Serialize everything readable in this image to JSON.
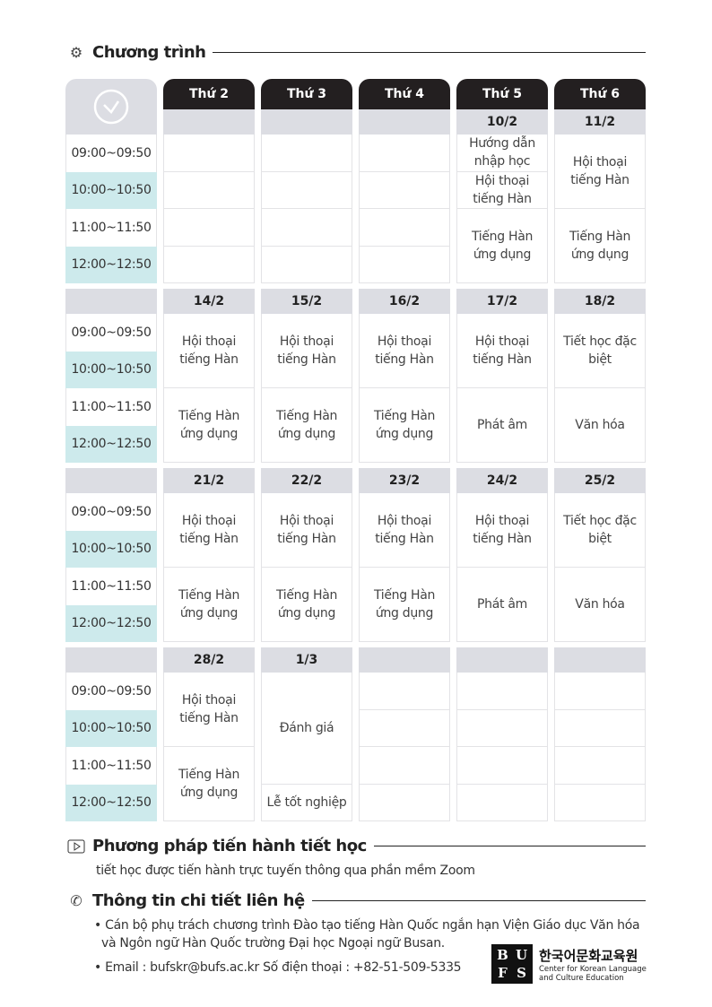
{
  "sections": {
    "program": {
      "title": "Chương trình",
      "icon": "gears-icon"
    },
    "method": {
      "title": "Phương pháp tiến hành tiết học",
      "icon": "play-icon",
      "text": "tiết học được tiến hành trực tuyến thông qua phần mềm Zoom"
    },
    "contact": {
      "title": "Thông tin chi tiết liên hệ",
      "icon": "phone-icon",
      "line1": "• Cán bộ phụ trách chương trình Đào tạo tiếng Hàn Quốc ngắn hạn Viện Giáo dục Văn hóa",
      "line2": "và Ngôn ngữ Hàn Quốc trường Đại học Ngoại ngữ Busan.",
      "line3": "• Email : bufskr@bufs.ac.kr  Số điện thoại : +82-51-509-5335"
    }
  },
  "logo": {
    "mark": [
      "B",
      "U",
      "F",
      "S"
    ],
    "korean": "한국어문화교육원",
    "english1": "Center for Korean Language",
    "english2": "and Culture Education"
  },
  "colors": {
    "header": "#231f20",
    "date_row": "#dcdde3",
    "time_alt": "#cdeaec"
  },
  "schedule": {
    "days": [
      "Thứ 2",
      "Thứ 3",
      "Thứ 4",
      "Thứ 5",
      "Thứ 6"
    ],
    "times": [
      "09:00~09:50",
      "10:00~10:50",
      "11:00~11:50",
      "12:00~12:50"
    ],
    "weeks": [
      {
        "dates": [
          "",
          "",
          "",
          "10/2",
          "11/2"
        ],
        "cells": [
          [
            [
              "",
              1
            ],
            [
              "",
              1
            ],
            [
              "",
              1
            ],
            [
              "",
              1
            ]
          ],
          [
            [
              "",
              1
            ],
            [
              "",
              1
            ],
            [
              "",
              1
            ],
            [
              "",
              1
            ]
          ],
          [
            [
              "",
              1
            ],
            [
              "",
              1
            ],
            [
              "",
              1
            ],
            [
              "",
              1
            ]
          ],
          [
            [
              "Hướng dẫn nhập học",
              1
            ],
            [
              "Hội thoại tiếng Hàn",
              1
            ],
            [
              "Tiếng Hàn ứng dụng",
              2
            ]
          ],
          [
            [
              "Hội thoại tiếng Hàn",
              2
            ],
            [
              "Tiếng Hàn ứng dụng",
              2
            ]
          ]
        ]
      },
      {
        "dates": [
          "14/2",
          "15/2",
          "16/2",
          "17/2",
          "18/2"
        ],
        "cells": [
          [
            [
              "Hội thoại tiếng Hàn",
              2
            ],
            [
              "Tiếng Hàn ứng dụng",
              2
            ]
          ],
          [
            [
              "Hội thoại tiếng Hàn",
              2
            ],
            [
              "Tiếng Hàn ứng dụng",
              2
            ]
          ],
          [
            [
              "Hội thoại tiếng Hàn",
              2
            ],
            [
              "Tiếng Hàn ứng dụng",
              2
            ]
          ],
          [
            [
              "Hội thoại tiếng Hàn",
              2
            ],
            [
              "Phát âm",
              2
            ]
          ],
          [
            [
              "Tiết học đặc biệt",
              2
            ],
            [
              "Văn hóa",
              2
            ]
          ]
        ]
      },
      {
        "dates": [
          "21/2",
          "22/2",
          "23/2",
          "24/2",
          "25/2"
        ],
        "cells": [
          [
            [
              "Hội thoại tiếng Hàn",
              2
            ],
            [
              "Tiếng Hàn ứng dụng",
              2
            ]
          ],
          [
            [
              "Hội thoại tiếng Hàn",
              2
            ],
            [
              "Tiếng Hàn ứng dụng",
              2
            ]
          ],
          [
            [
              "Hội thoại tiếng Hàn",
              2
            ],
            [
              "Tiếng Hàn ứng dụng",
              2
            ]
          ],
          [
            [
              "Hội thoại tiếng Hàn",
              2
            ],
            [
              "Phát âm",
              2
            ]
          ],
          [
            [
              "Tiết học đặc biệt",
              2
            ],
            [
              "Văn hóa",
              2
            ]
          ]
        ]
      },
      {
        "dates": [
          "28/2",
          "1/3",
          "",
          "",
          ""
        ],
        "cells": [
          [
            [
              "Hội thoại tiếng Hàn",
              2
            ],
            [
              "Tiếng Hàn ứng dụng",
              2
            ]
          ],
          [
            [
              "Đánh giá",
              3
            ],
            [
              "Lễ tốt nghiệp",
              1
            ]
          ],
          [
            [
              "",
              1
            ],
            [
              "",
              1
            ],
            [
              "",
              1
            ],
            [
              "",
              1
            ]
          ],
          [
            [
              "",
              1
            ],
            [
              "",
              1
            ],
            [
              "",
              1
            ],
            [
              "",
              1
            ]
          ],
          [
            [
              "",
              1
            ],
            [
              "",
              1
            ],
            [
              "",
              1
            ],
            [
              "",
              1
            ]
          ]
        ]
      }
    ]
  }
}
